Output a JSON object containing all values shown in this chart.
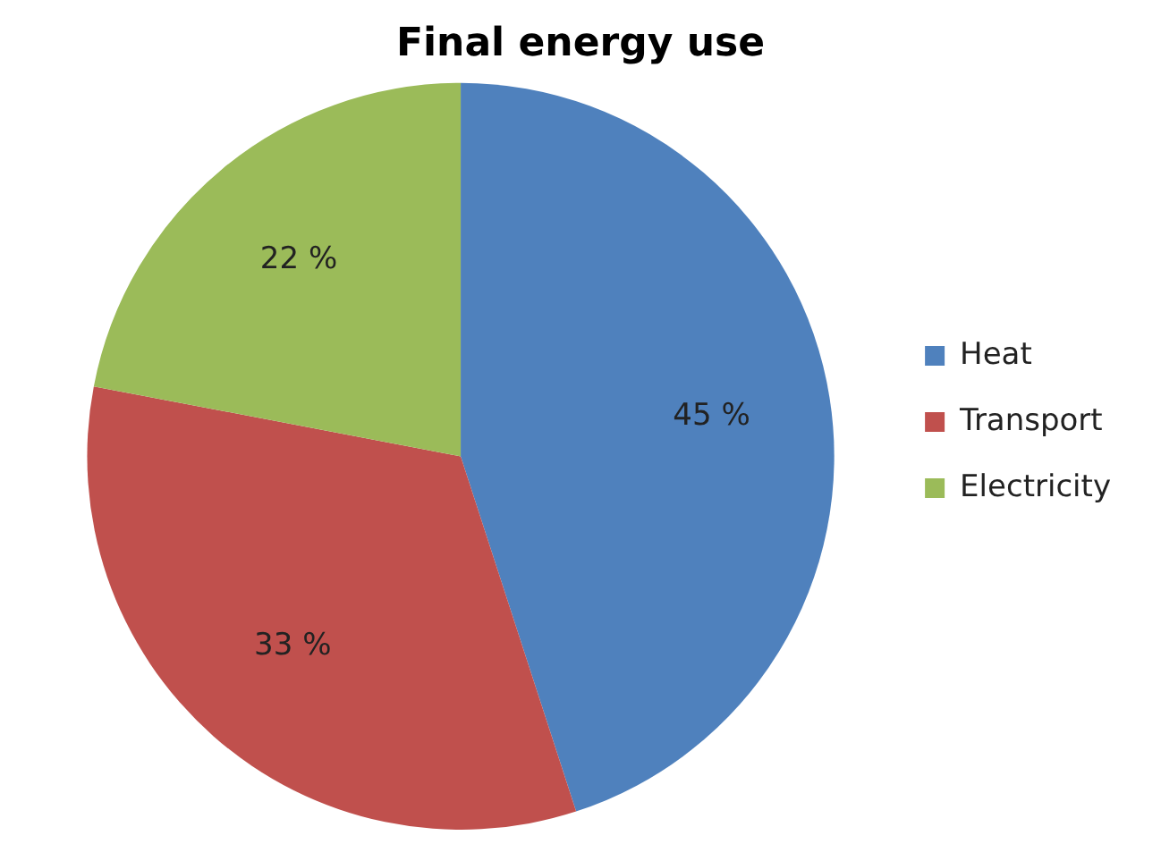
{
  "chart_data": {
    "type": "pie",
    "title": "Final energy use",
    "categories": [
      "Heat",
      "Transport",
      "Electricity"
    ],
    "values": [
      45,
      33,
      22
    ],
    "colors": [
      "#4f81bd",
      "#c0504d",
      "#9bbb59"
    ],
    "value_labels": [
      "45 %",
      "33 %",
      "22 %"
    ],
    "legend": "right"
  }
}
